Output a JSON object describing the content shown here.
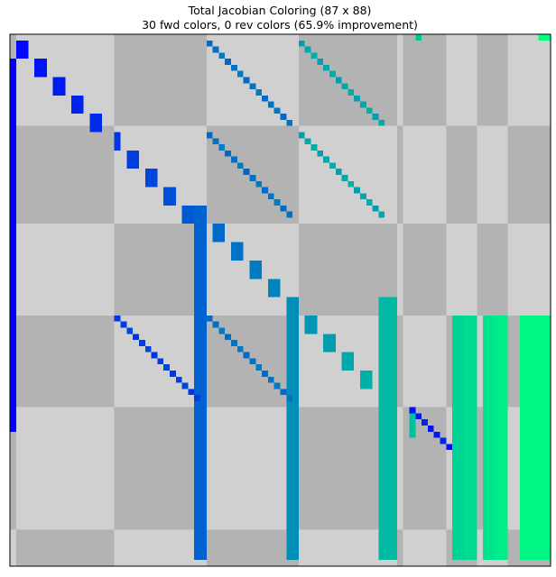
{
  "chart_data": {
    "type": "heatmap",
    "title": "Total Jacobian Coloring (87 x 88)",
    "subtitle": "30 fwd colors, 0 rev colors (65.9% improvement)",
    "n_rows": 87,
    "n_cols": 88,
    "fwd_colors": 30,
    "rev_colors": 0,
    "improvement_pct": 65.9,
    "colormap": "winter (blue → green by color index)",
    "empty_colors": {
      "light": "#d0d0d0",
      "dark": "#b3b3b3"
    },
    "axes_visible": false,
    "row_bands": [
      {
        "start": 0,
        "end": 15,
        "tone": "dark"
      },
      {
        "start": 15,
        "end": 31,
        "tone": "light"
      },
      {
        "start": 31,
        "end": 46,
        "tone": "dark"
      },
      {
        "start": 46,
        "end": 61,
        "tone": "light"
      },
      {
        "start": 61,
        "end": 81,
        "tone": "dark"
      },
      {
        "start": 81,
        "end": 87,
        "tone": "light"
      }
    ],
    "col_bands": [
      {
        "start": 0,
        "end": 1,
        "tone": "light"
      },
      {
        "start": 1,
        "end": 17,
        "tone": "dark"
      },
      {
        "start": 17,
        "end": 32,
        "tone": "light"
      },
      {
        "start": 32,
        "end": 47,
        "tone": "dark"
      },
      {
        "start": 47,
        "end": 63,
        "tone": "light"
      },
      {
        "start": 63,
        "end": 64,
        "tone": "dark"
      },
      {
        "start": 64,
        "end": 71,
        "tone": "light"
      },
      {
        "start": 71,
        "end": 76,
        "tone": "dark"
      },
      {
        "start": 76,
        "end": 81,
        "tone": "light"
      },
      {
        "start": 81,
        "end": 88,
        "tone": "dark"
      }
    ],
    "nonzero_blocks": [
      {
        "c": 0,
        "r": 4,
        "w": 1,
        "h": 61,
        "color": 0
      },
      {
        "c": 1,
        "r": 1,
        "w": 2,
        "h": 3,
        "color": 1
      },
      {
        "c": 4,
        "r": 4,
        "w": 2,
        "h": 3,
        "color": 2
      },
      {
        "c": 7,
        "r": 7,
        "w": 2,
        "h": 3,
        "color": 3
      },
      {
        "c": 10,
        "r": 10,
        "w": 2,
        "h": 3,
        "color": 4
      },
      {
        "c": 13,
        "r": 13,
        "w": 2,
        "h": 3,
        "color": 5
      },
      {
        "c": 17,
        "r": 16,
        "w": 1,
        "h": 3,
        "color": 6
      },
      {
        "c": 19,
        "r": 19,
        "w": 2,
        "h": 3,
        "color": 7
      },
      {
        "c": 22,
        "r": 22,
        "w": 2,
        "h": 3,
        "color": 8
      },
      {
        "c": 25,
        "r": 25,
        "w": 2,
        "h": 3,
        "color": 9
      },
      {
        "c": 28,
        "r": 28,
        "w": 2,
        "h": 3,
        "color": 10
      },
      {
        "c": 30,
        "r": 28,
        "w": 2,
        "h": 58,
        "color": 11
      },
      {
        "c": 33,
        "r": 31,
        "w": 2,
        "h": 3,
        "color": 12
      },
      {
        "c": 36,
        "r": 34,
        "w": 2,
        "h": 3,
        "color": 13
      },
      {
        "c": 39,
        "r": 37,
        "w": 2,
        "h": 3,
        "color": 14
      },
      {
        "c": 42,
        "r": 40,
        "w": 2,
        "h": 3,
        "color": 15
      },
      {
        "c": 45,
        "r": 43,
        "w": 2,
        "h": 43,
        "color": 16
      },
      {
        "c": 48,
        "r": 46,
        "w": 2,
        "h": 3,
        "color": 17
      },
      {
        "c": 51,
        "r": 49,
        "w": 2,
        "h": 3,
        "color": 18
      },
      {
        "c": 54,
        "r": 52,
        "w": 2,
        "h": 3,
        "color": 19
      },
      {
        "c": 57,
        "r": 55,
        "w": 2,
        "h": 3,
        "color": 20
      },
      {
        "c": 60,
        "r": 43,
        "w": 3,
        "h": 43,
        "color": 21
      },
      {
        "c": 65,
        "r": 61,
        "w": 1,
        "h": 5,
        "color": 22
      },
      {
        "c": 66,
        "r": 0,
        "w": 1,
        "h": 1,
        "color": 23
      },
      {
        "c": 72,
        "r": 46,
        "w": 2,
        "h": 40,
        "color": 24
      },
      {
        "c": 74,
        "r": 46,
        "w": 2,
        "h": 40,
        "color": 25
      },
      {
        "c": 77,
        "r": 46,
        "w": 2,
        "h": 40,
        "color": 26
      },
      {
        "c": 79,
        "r": 46,
        "w": 2,
        "h": 40,
        "color": 27
      },
      {
        "c": 83,
        "r": 46,
        "w": 5,
        "h": 40,
        "color": 28
      },
      {
        "c": 86,
        "r": 0,
        "w": 2,
        "h": 1,
        "color": 29
      }
    ],
    "diagonal_strands": [
      {
        "c": 32,
        "r": 1,
        "len": 14,
        "color": 12
      },
      {
        "c": 47,
        "r": 1,
        "len": 14,
        "color": 18
      },
      {
        "c": 32,
        "r": 16,
        "len": 14,
        "color": 12
      },
      {
        "c": 47,
        "r": 16,
        "len": 14,
        "color": 18
      },
      {
        "c": 17,
        "r": 46,
        "len": 14,
        "color": 6
      },
      {
        "c": 32,
        "r": 46,
        "len": 14,
        "color": 12
      },
      {
        "c": 65,
        "r": 61,
        "len": 7,
        "color": 2
      }
    ]
  }
}
